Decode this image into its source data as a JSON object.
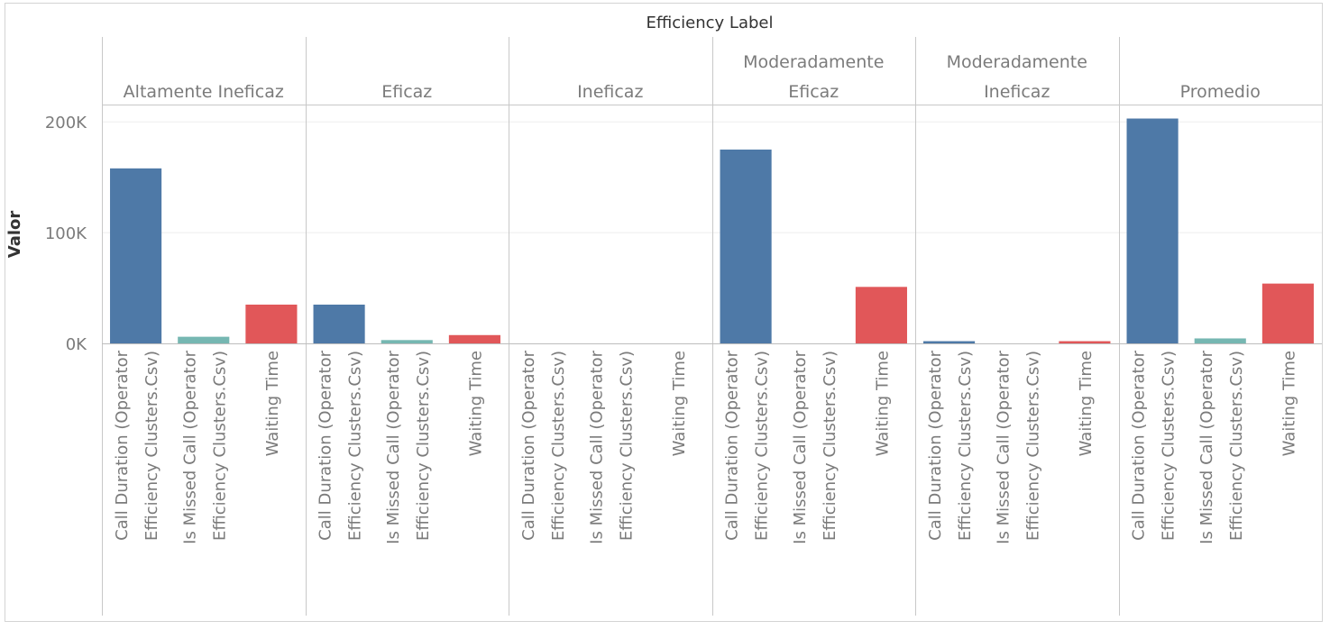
{
  "chart_data": {
    "type": "bar",
    "title": "Efficiency Label",
    "xlabel": "",
    "ylabel": "Valor",
    "ylim": [
      0,
      214000
    ],
    "yticks": [
      0,
      100000,
      200000
    ],
    "ytick_labels": [
      "0K",
      "100K",
      "200K"
    ],
    "grid": true,
    "groups": [
      {
        "label_lines": [
          "Altamente Ineficaz"
        ]
      },
      {
        "label_lines": [
          "Eficaz"
        ]
      },
      {
        "label_lines": [
          "Ineficaz"
        ]
      },
      {
        "label_lines": [
          "Moderadamente",
          "Eficaz"
        ]
      },
      {
        "label_lines": [
          "Moderadamente",
          "Ineficaz"
        ]
      },
      {
        "label_lines": [
          "Promedio"
        ]
      }
    ],
    "categories": [
      {
        "label_lines": [
          "Call Duration (Operator",
          "Efficiency Clusters.Csv)"
        ],
        "color": "#4e79a7"
      },
      {
        "label_lines": [
          "Is Missed Call (Operator",
          "Efficiency Clusters.Csv)"
        ],
        "color": "#76b7b2"
      },
      {
        "label_lines": [
          "Waiting Time"
        ],
        "color": "#e15759"
      }
    ],
    "values": [
      [
        158000,
        6000,
        35000
      ],
      [
        35000,
        3000,
        7500
      ],
      [
        0,
        0,
        0
      ],
      [
        175000,
        0,
        51000
      ],
      [
        2000,
        0,
        2000
      ],
      [
        203000,
        4500,
        54000
      ]
    ]
  }
}
